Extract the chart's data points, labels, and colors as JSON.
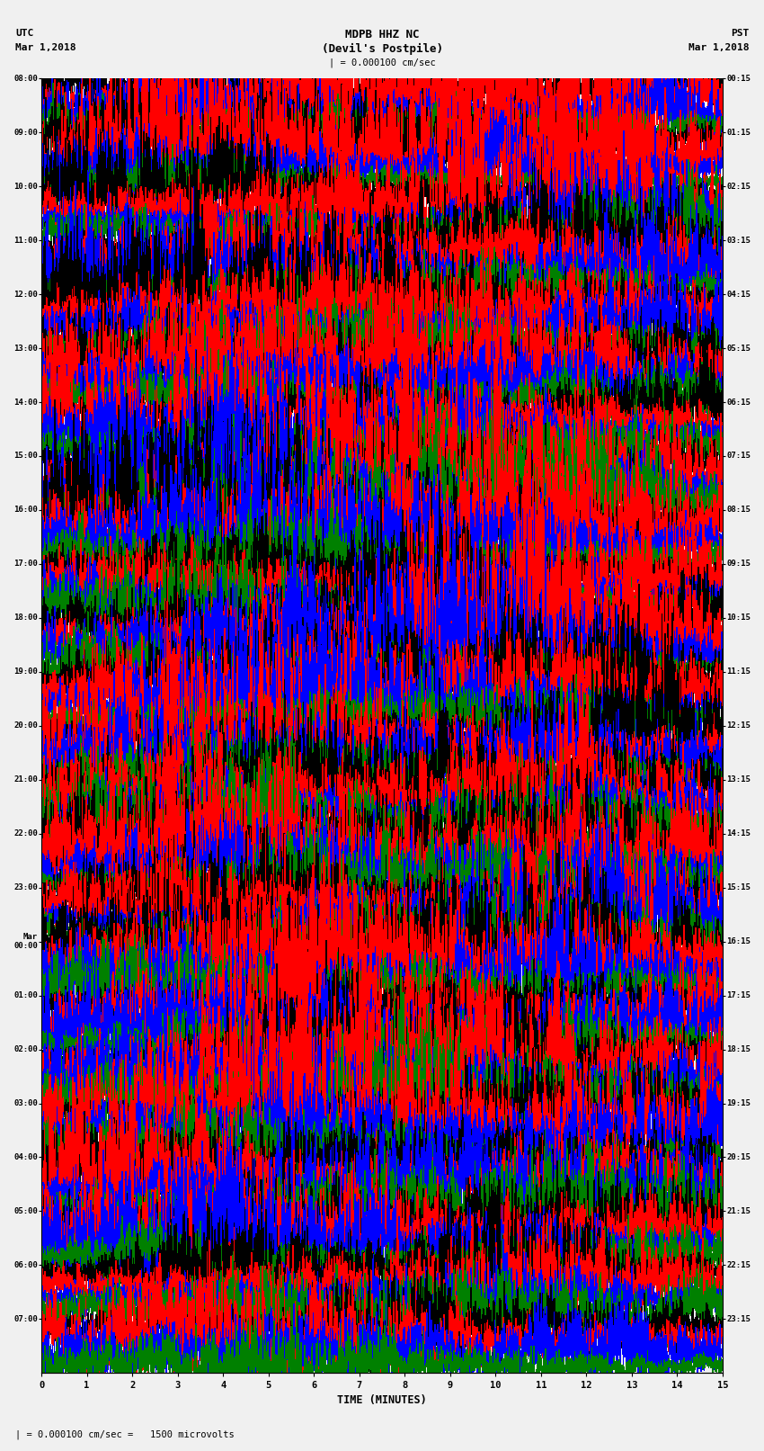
{
  "title_line1": "MDPB HHZ NC",
  "title_line2": "(Devil's Postpile)",
  "scale_label": "| = 0.000100 cm/sec",
  "left_header_line1": "UTC",
  "left_header_line2": "Mar 1,2018",
  "right_header_line1": "PST",
  "right_header_line2": "Mar 1,2018",
  "scale_footer": "| = 0.000100 cm/sec =   1500 microvolts",
  "xlabel": "TIME (MINUTES)",
  "utc_labels": [
    "08:00",
    "09:00",
    "10:00",
    "11:00",
    "12:00",
    "13:00",
    "14:00",
    "15:00",
    "16:00",
    "17:00",
    "18:00",
    "19:00",
    "20:00",
    "21:00",
    "22:00",
    "23:00",
    "Mar\n00:00",
    "01:00",
    "02:00",
    "03:00",
    "04:00",
    "05:00",
    "06:00",
    "07:00"
  ],
  "pst_labels": [
    "00:15",
    "01:15",
    "02:15",
    "03:15",
    "04:15",
    "05:15",
    "06:15",
    "07:15",
    "08:15",
    "09:15",
    "10:15",
    "11:15",
    "12:15",
    "13:15",
    "14:15",
    "15:15",
    "16:15",
    "17:15",
    "18:15",
    "19:15",
    "20:15",
    "21:15",
    "22:15",
    "23:15"
  ],
  "colors": [
    "black",
    "red",
    "blue",
    "green"
  ],
  "num_rows": 24,
  "traces_per_row": 4,
  "minutes": 15,
  "bg_color": "#f0f0f0",
  "font_family": "monospace"
}
